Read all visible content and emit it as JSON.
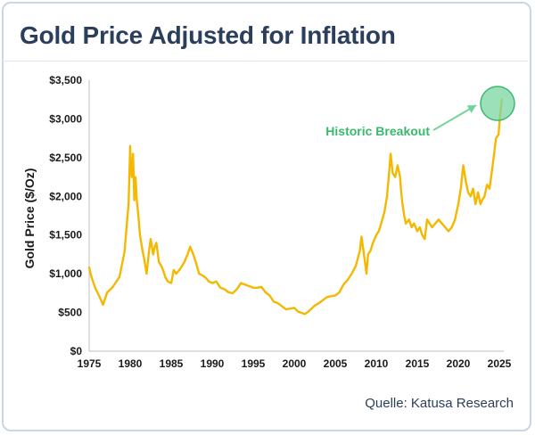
{
  "card": {
    "title": "Gold Price Adjusted for Inflation",
    "source": "Quelle: Katusa Research"
  },
  "colors": {
    "title": "#2b3f5c",
    "line": "#f5b800",
    "highlight": "#5cc98c",
    "annotation": "#3bb870"
  },
  "chart_data": {
    "type": "line",
    "title": "Gold Price Adjusted for Inflation",
    "xlabel": "",
    "ylabel": "Gold Price ($/Oz)",
    "xlim": [
      1975,
      2025
    ],
    "ylim": [
      0,
      3500
    ],
    "xticks": [
      1975,
      1980,
      1985,
      1990,
      1995,
      2000,
      2005,
      2010,
      2015,
      2020,
      2025
    ],
    "xtick_labels": [
      "1975",
      "1980",
      "1985",
      "1990",
      "1995",
      "2000",
      "2005",
      "2010",
      "2015",
      "2020",
      "2025"
    ],
    "yticks": [
      0,
      500,
      1000,
      1500,
      2000,
      2500,
      3000,
      3500
    ],
    "ytick_labels": [
      "$0",
      "$500",
      "$1,000",
      "$1,500",
      "$2,000",
      "$2,500",
      "$3,000",
      "$3,500"
    ],
    "grid": false,
    "annotation": {
      "text": "Historic Breakout",
      "x": 2025,
      "y": 3200
    },
    "series": [
      {
        "x": [
          1975.0,
          1975.3,
          1975.8,
          1976.2,
          1976.7,
          1977.2,
          1977.8,
          1978.2,
          1978.7,
          1979.0,
          1979.3,
          1979.6,
          1979.8,
          1980.0,
          1980.05,
          1980.2,
          1980.35,
          1980.5,
          1980.65,
          1980.8,
          1981.0,
          1981.2,
          1981.5,
          1981.7,
          1982.0,
          1982.3,
          1982.5,
          1982.8,
          1983.0,
          1983.2,
          1983.5,
          1983.8,
          1984.0,
          1984.3,
          1984.6,
          1985.0,
          1985.3,
          1985.6,
          1986.0,
          1986.3,
          1986.6,
          1987.0,
          1987.3,
          1987.7,
          1988.0,
          1988.4,
          1988.8,
          1989.2,
          1989.6,
          1990.0,
          1990.5,
          1991.0,
          1991.5,
          1992.0,
          1992.5,
          1993.0,
          1993.5,
          1994.0,
          1994.5,
          1995.0,
          1995.5,
          1996.0,
          1996.5,
          1997.0,
          1997.5,
          1998.0,
          1998.5,
          1999.0,
          1999.5,
          2000.0,
          2000.5,
          2001.0,
          2001.3,
          2001.7,
          2002.0,
          2002.5,
          2003.0,
          2003.5,
          2004.0,
          2004.5,
          2005.0,
          2005.5,
          2006.0,
          2006.5,
          2007.0,
          2007.5,
          2008.0,
          2008.2,
          2008.5,
          2008.8,
          2009.0,
          2009.3,
          2009.6,
          2010.0,
          2010.3,
          2010.6,
          2011.0,
          2011.3,
          2011.6,
          2011.75,
          2012.0,
          2012.3,
          2012.6,
          2012.9,
          2013.0,
          2013.2,
          2013.4,
          2013.6,
          2014.0,
          2014.3,
          2014.6,
          2015.0,
          2015.3,
          2015.6,
          2015.9,
          2016.2,
          2016.5,
          2016.8,
          2017.2,
          2017.6,
          2018.0,
          2018.4,
          2018.8,
          2019.2,
          2019.6,
          2020.0,
          2020.3,
          2020.6,
          2020.9,
          2021.2,
          2021.5,
          2021.8,
          2022.1,
          2022.4,
          2022.7,
          2022.9,
          2023.2,
          2023.5,
          2023.8,
          2024.0,
          2024.3,
          2024.6,
          2024.9,
          2025.1,
          2025.3
        ],
        "values": [
          1080,
          950,
          800,
          720,
          600,
          760,
          820,
          880,
          960,
          1120,
          1280,
          1650,
          1900,
          2650,
          2450,
          2250,
          2550,
          1950,
          2250,
          1950,
          1750,
          1500,
          1300,
          1200,
          1000,
          1300,
          1450,
          1250,
          1350,
          1400,
          1150,
          1100,
          1050,
          950,
          900,
          880,
          1050,
          1000,
          1050,
          1100,
          1150,
          1250,
          1350,
          1250,
          1150,
          1000,
          980,
          950,
          900,
          880,
          900,
          820,
          800,
          760,
          750,
          800,
          880,
          860,
          840,
          820,
          820,
          830,
          760,
          720,
          640,
          620,
          580,
          540,
          550,
          560,
          510,
          490,
          480,
          510,
          540,
          590,
          620,
          660,
          700,
          710,
          720,
          760,
          860,
          920,
          1000,
          1100,
          1300,
          1480,
          1250,
          1000,
          1250,
          1300,
          1400,
          1500,
          1550,
          1650,
          1800,
          2000,
          2350,
          2550,
          2300,
          2250,
          2400,
          2250,
          2100,
          1900,
          1750,
          1650,
          1700,
          1600,
          1650,
          1550,
          1600,
          1500,
          1450,
          1700,
          1650,
          1600,
          1650,
          1700,
          1650,
          1600,
          1550,
          1600,
          1700,
          1900,
          2100,
          2400,
          2200,
          2050,
          2000,
          2100,
          1900,
          2050,
          1900,
          1950,
          2000,
          2150,
          2100,
          2250,
          2500,
          2750,
          2800,
          3050,
          3250
        ]
      }
    ]
  }
}
